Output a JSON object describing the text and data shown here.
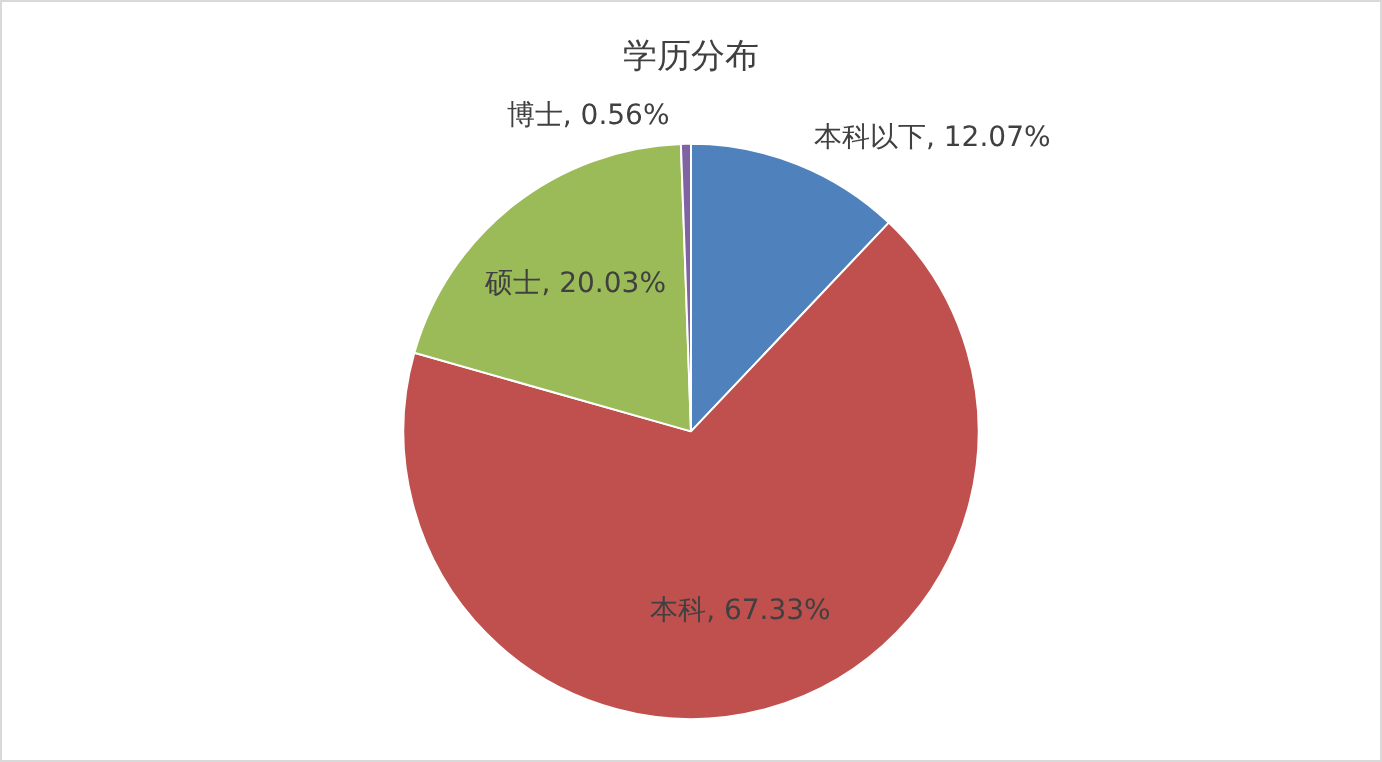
{
  "chart_data": {
    "type": "pie",
    "title": "学历分布",
    "categories": [
      "本科以下",
      "本科",
      "硕士",
      "博士"
    ],
    "values": [
      12.07,
      67.33,
      20.03,
      0.56
    ],
    "colors": [
      "#4f81bd",
      "#c0504d",
      "#9bbb59",
      "#8064a2"
    ],
    "value_labels": [
      "12.07%",
      "67.33%",
      "20.03%",
      "0.56%"
    ],
    "legend": false
  }
}
